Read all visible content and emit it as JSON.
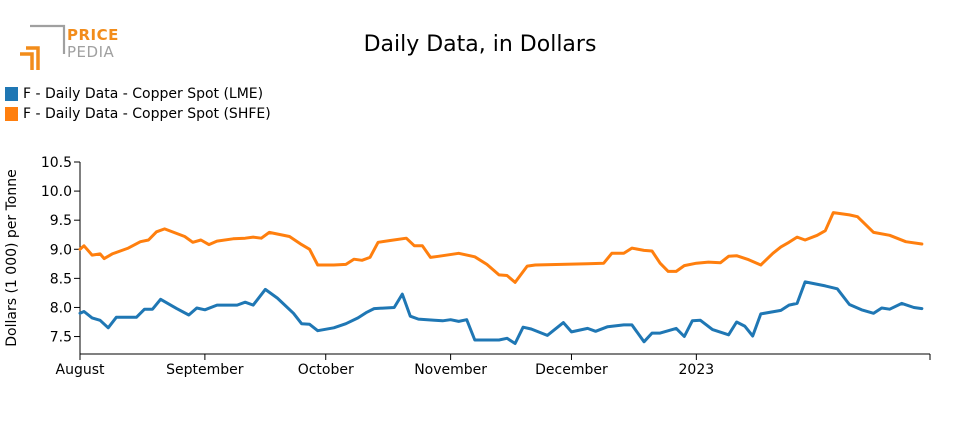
{
  "logo": {
    "word1": "PRICE",
    "word2": "PEDIA",
    "color_primary": "#f28c1a",
    "color_secondary": "#a0a0a0"
  },
  "title": "Daily Data, in Dollars",
  "legend": [
    {
      "label": "F - Daily Data - Copper Spot (LME)",
      "color": "#1f77b4"
    },
    {
      "label": "F - Daily Data - Copper Spot (SHFE)",
      "color": "#ff7f0e"
    }
  ],
  "chart_data": {
    "type": "line",
    "title": "Daily Data, in Dollars",
    "ylabel": "Dollars (1 000) per Tonne",
    "xlabel": "",
    "ylim": [
      7.2,
      10.5
    ],
    "xlim": [
      "2022-08-01",
      "2023-02-28"
    ],
    "yticks": [
      7.5,
      8.0,
      8.5,
      9.0,
      9.5,
      10.0,
      10.5
    ],
    "ytick_labels": [
      "7.5",
      "8.0",
      "8.5",
      "9.0",
      "9.5",
      "10.0",
      "10.5"
    ],
    "xticks": [
      {
        "date": "2022-08-01",
        "label": "August"
      },
      {
        "date": "2022-09-01",
        "label": "September"
      },
      {
        "date": "2022-10-01",
        "label": "October"
      },
      {
        "date": "2022-11-01",
        "label": "November"
      },
      {
        "date": "2022-12-01",
        "label": "December"
      },
      {
        "date": "2023-01-01",
        "label": "2023"
      }
    ],
    "grid": false,
    "legend_position": "top-left",
    "series": [
      {
        "name": "F - Daily Data - Copper Spot (LME)",
        "color": "#1f77b4",
        "points": [
          [
            "2022-08-01",
            7.9
          ],
          [
            "2022-08-02",
            7.93
          ],
          [
            "2022-08-04",
            7.82
          ],
          [
            "2022-08-06",
            7.78
          ],
          [
            "2022-08-08",
            7.65
          ],
          [
            "2022-08-10",
            7.83
          ],
          [
            "2022-08-15",
            7.83
          ],
          [
            "2022-08-17",
            7.97
          ],
          [
            "2022-08-19",
            7.97
          ],
          [
            "2022-08-21",
            8.14
          ],
          [
            "2022-08-25",
            7.98
          ],
          [
            "2022-08-28",
            7.87
          ],
          [
            "2022-08-30",
            7.99
          ],
          [
            "2022-09-01",
            7.96
          ],
          [
            "2022-09-04",
            8.04
          ],
          [
            "2022-09-09",
            8.04
          ],
          [
            "2022-09-11",
            8.09
          ],
          [
            "2022-09-13",
            8.04
          ],
          [
            "2022-09-16",
            8.31
          ],
          [
            "2022-09-19",
            8.16
          ],
          [
            "2022-09-23",
            7.9
          ],
          [
            "2022-09-25",
            7.72
          ],
          [
            "2022-09-27",
            7.71
          ],
          [
            "2022-09-29",
            7.6
          ],
          [
            "2022-10-03",
            7.65
          ],
          [
            "2022-10-06",
            7.72
          ],
          [
            "2022-10-09",
            7.82
          ],
          [
            "2022-10-11",
            7.91
          ],
          [
            "2022-10-13",
            7.98
          ],
          [
            "2022-10-18",
            8.0
          ],
          [
            "2022-10-20",
            8.23
          ],
          [
            "2022-10-22",
            7.85
          ],
          [
            "2022-10-24",
            7.8
          ],
          [
            "2022-10-28",
            7.78
          ],
          [
            "2022-10-30",
            7.77
          ],
          [
            "2022-11-01",
            7.79
          ],
          [
            "2022-11-03",
            7.76
          ],
          [
            "2022-11-05",
            7.79
          ],
          [
            "2022-11-07",
            7.44
          ],
          [
            "2022-11-13",
            7.44
          ],
          [
            "2022-11-15",
            7.47
          ],
          [
            "2022-11-17",
            7.38
          ],
          [
            "2022-11-19",
            7.66
          ],
          [
            "2022-11-21",
            7.63
          ],
          [
            "2022-11-25",
            7.52
          ],
          [
            "2022-11-29",
            7.74
          ],
          [
            "2022-12-01",
            7.58
          ],
          [
            "2022-12-05",
            7.64
          ],
          [
            "2022-12-07",
            7.59
          ],
          [
            "2022-12-10",
            7.67
          ],
          [
            "2022-12-14",
            7.7
          ],
          [
            "2022-12-16",
            7.7
          ],
          [
            "2022-12-19",
            7.41
          ],
          [
            "2022-12-21",
            7.56
          ],
          [
            "2022-12-23",
            7.56
          ],
          [
            "2022-12-27",
            7.64
          ],
          [
            "2022-12-29",
            7.5
          ],
          [
            "2022-12-31",
            7.77
          ],
          [
            "2023-01-02",
            7.78
          ],
          [
            "2023-01-05",
            7.62
          ],
          [
            "2023-01-09",
            7.53
          ],
          [
            "2023-01-11",
            7.75
          ],
          [
            "2023-01-13",
            7.68
          ],
          [
            "2023-01-15",
            7.51
          ],
          [
            "2023-01-17",
            7.89
          ],
          [
            "2023-01-22",
            7.95
          ],
          [
            "2023-01-24",
            8.04
          ],
          [
            "2023-01-26",
            8.07
          ],
          [
            "2023-01-28",
            8.44
          ],
          [
            "2023-02-02",
            8.37
          ],
          [
            "2023-02-05",
            8.32
          ],
          [
            "2023-02-08",
            8.05
          ],
          [
            "2023-02-11",
            7.96
          ],
          [
            "2023-02-14",
            7.9
          ],
          [
            "2023-02-16",
            7.99
          ],
          [
            "2023-02-18",
            7.97
          ],
          [
            "2023-02-21",
            8.07
          ],
          [
            "2023-02-24",
            8.0
          ],
          [
            "2023-02-26",
            7.98
          ]
        ]
      },
      {
        "name": "F - Daily Data - Copper Spot (SHFE)",
        "color": "#ff7f0e",
        "points": [
          [
            "2022-08-01",
            9.0
          ],
          [
            "2022-08-02",
            9.06
          ],
          [
            "2022-08-04",
            8.9
          ],
          [
            "2022-08-06",
            8.92
          ],
          [
            "2022-08-07",
            8.84
          ],
          [
            "2022-08-09",
            8.92
          ],
          [
            "2022-08-13",
            9.02
          ],
          [
            "2022-08-16",
            9.13
          ],
          [
            "2022-08-18",
            9.16
          ],
          [
            "2022-08-20",
            9.3
          ],
          [
            "2022-08-22",
            9.35
          ],
          [
            "2022-08-27",
            9.22
          ],
          [
            "2022-08-29",
            9.12
          ],
          [
            "2022-08-31",
            9.16
          ],
          [
            "2022-09-02",
            9.08
          ],
          [
            "2022-09-04",
            9.14
          ],
          [
            "2022-09-08",
            9.18
          ],
          [
            "2022-09-11",
            9.19
          ],
          [
            "2022-09-13",
            9.21
          ],
          [
            "2022-09-15",
            9.19
          ],
          [
            "2022-09-17",
            9.29
          ],
          [
            "2022-09-22",
            9.22
          ],
          [
            "2022-09-25",
            9.08
          ],
          [
            "2022-09-27",
            9.0
          ],
          [
            "2022-09-29",
            8.73
          ],
          [
            "2022-10-03",
            8.73
          ],
          [
            "2022-10-06",
            8.74
          ],
          [
            "2022-10-08",
            8.83
          ],
          [
            "2022-10-10",
            8.81
          ],
          [
            "2022-10-12",
            8.86
          ],
          [
            "2022-10-14",
            9.12
          ],
          [
            "2022-10-17",
            9.15
          ],
          [
            "2022-10-21",
            9.19
          ],
          [
            "2022-10-23",
            9.06
          ],
          [
            "2022-10-25",
            9.06
          ],
          [
            "2022-10-27",
            8.86
          ],
          [
            "2022-10-29",
            8.88
          ],
          [
            "2022-11-03",
            8.93
          ],
          [
            "2022-11-07",
            8.87
          ],
          [
            "2022-11-10",
            8.74
          ],
          [
            "2022-11-13",
            8.56
          ],
          [
            "2022-11-15",
            8.55
          ],
          [
            "2022-11-17",
            8.43
          ],
          [
            "2022-11-20",
            8.71
          ],
          [
            "2022-11-22",
            8.73
          ],
          [
            "2022-12-05",
            8.75
          ],
          [
            "2022-12-09",
            8.76
          ],
          [
            "2022-12-11",
            8.93
          ],
          [
            "2022-12-14",
            8.93
          ],
          [
            "2022-12-16",
            9.02
          ],
          [
            "2022-12-19",
            8.98
          ],
          [
            "2022-12-21",
            8.97
          ],
          [
            "2022-12-23",
            8.76
          ],
          [
            "2022-12-25",
            8.62
          ],
          [
            "2022-12-27",
            8.62
          ],
          [
            "2022-12-29",
            8.72
          ],
          [
            "2023-01-01",
            8.76
          ],
          [
            "2023-01-04",
            8.78
          ],
          [
            "2023-01-07",
            8.77
          ],
          [
            "2023-01-09",
            8.88
          ],
          [
            "2023-01-11",
            8.89
          ],
          [
            "2023-01-14",
            8.82
          ],
          [
            "2023-01-17",
            8.73
          ],
          [
            "2023-01-20",
            8.93
          ],
          [
            "2023-01-22",
            9.04
          ],
          [
            "2023-01-24",
            9.12
          ],
          [
            "2023-01-26",
            9.21
          ],
          [
            "2023-01-28",
            9.16
          ],
          [
            "2023-01-31",
            9.24
          ],
          [
            "2023-02-02",
            9.32
          ],
          [
            "2023-02-04",
            9.63
          ],
          [
            "2023-02-08",
            9.59
          ],
          [
            "2023-02-10",
            9.56
          ],
          [
            "2023-02-14",
            9.29
          ],
          [
            "2023-02-18",
            9.24
          ],
          [
            "2023-02-22",
            9.13
          ],
          [
            "2023-02-26",
            9.09
          ]
        ]
      }
    ]
  }
}
